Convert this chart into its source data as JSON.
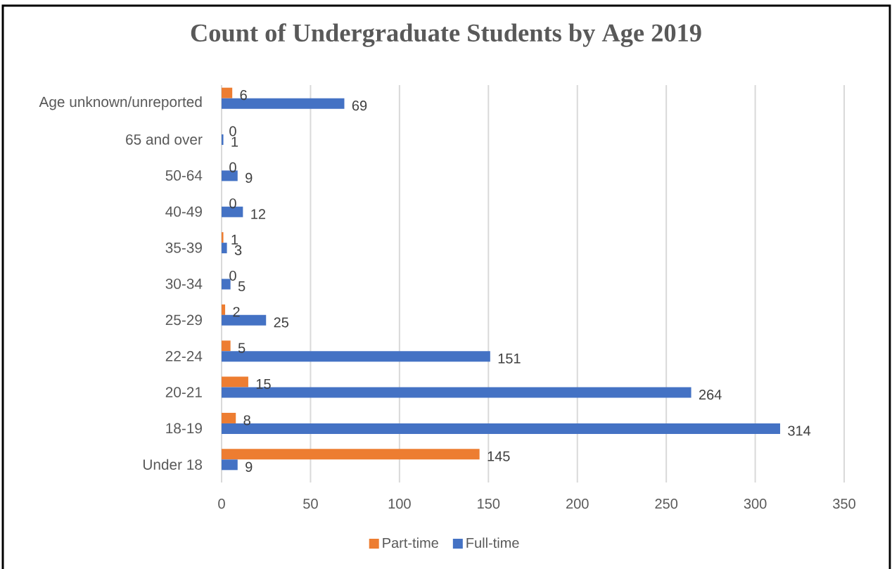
{
  "chart_data": {
    "type": "bar",
    "orientation": "horizontal",
    "title": "Count of Undergraduate Students by Age 2019",
    "categories": [
      "Age unknown/unreported",
      "65 and over",
      "50-64",
      "40-49",
      "35-39",
      "30-34",
      "25-29",
      "22-24",
      "20-21",
      "18-19",
      "Under 18"
    ],
    "series": [
      {
        "name": "Part-time",
        "color": "#ed7d31",
        "values": [
          6,
          0,
          0,
          0,
          1,
          0,
          2,
          5,
          15,
          8,
          145
        ]
      },
      {
        "name": "Full-time",
        "color": "#4472c4",
        "values": [
          69,
          1,
          9,
          12,
          3,
          5,
          25,
          151,
          264,
          314,
          9
        ]
      }
    ],
    "xlim": [
      0,
      350
    ],
    "xticks": [
      0,
      50,
      100,
      150,
      200,
      250,
      300,
      350
    ],
    "grid": "x",
    "legend": "bottom",
    "data_labels": true
  }
}
